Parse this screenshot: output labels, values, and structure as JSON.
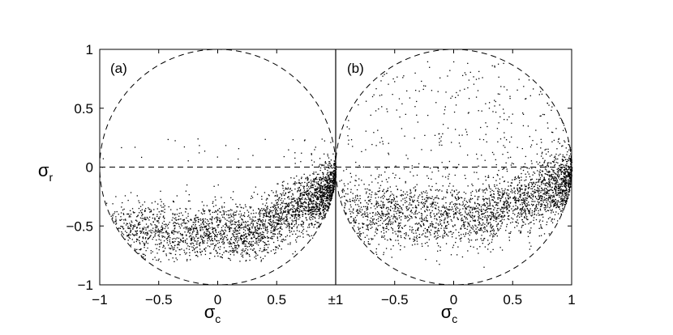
{
  "chart_data": {
    "type": "scatter",
    "xlabel": {
      "main": "σ",
      "sub": "c"
    },
    "ylabel": {
      "main": "σ",
      "sub": "r"
    },
    "x_ticks": [
      "−1",
      "−0.5",
      "0",
      "0.5",
      "±1",
      "−0.5",
      "0",
      "0.5",
      "1"
    ],
    "y_ticks": [
      "−1",
      "−0.5",
      "0",
      "0.5",
      "1"
    ],
    "grid": false,
    "reference_lines": {
      "unit_circle": true,
      "horizontal_zero": true,
      "style": "dashed"
    },
    "panels": [
      {
        "label": "(a)",
        "xlim": [
          -1,
          1
        ],
        "ylim": [
          -1,
          1
        ],
        "description_points": {
          "x_range": [
            -1,
            1
          ],
          "y_range": [
            -0.8,
            0.25
          ],
          "dense_region": {
            "x": [
              0.4,
              1.0
            ],
            "y": [
              -0.6,
              -0.1
            ]
          },
          "approx_count": 6000
        }
      },
      {
        "label": "(b)",
        "xlim": [
          -1,
          1
        ],
        "ylim": [
          -1,
          1
        ],
        "description_points": {
          "x_range": [
            -1,
            1
          ],
          "y_range": [
            -0.8,
            1.0
          ],
          "dense_region": {
            "x": [
              0.5,
              1.0
            ],
            "y": [
              -0.5,
              0.0
            ]
          },
          "approx_count": 6000
        }
      }
    ]
  }
}
